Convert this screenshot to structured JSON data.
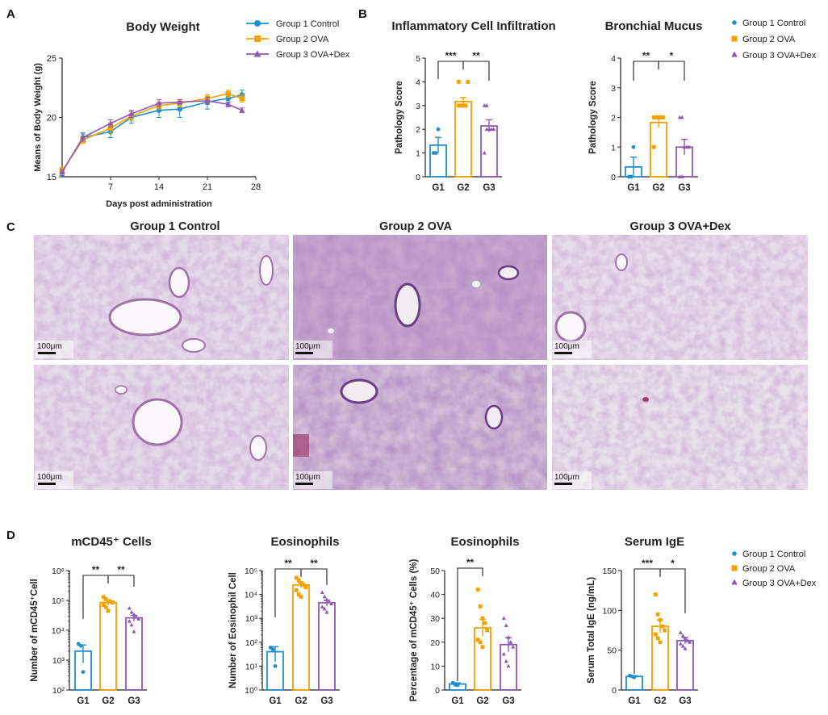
{
  "colors": {
    "g1": "#1f8fd0",
    "g2": "#f5a100",
    "g3": "#8f57b5",
    "axis": "#222222"
  },
  "legend": {
    "groups": [
      "Group 1 Control",
      "Group 2 OVA",
      "Group 3 OVA+Dex"
    ]
  },
  "panel_letters": [
    "A",
    "B",
    "C",
    "D"
  ],
  "groups_short": [
    "G1",
    "G2",
    "G3"
  ],
  "chart_data": [
    {
      "id": "bodyweight",
      "type": "line",
      "title": "Body Weight",
      "xlabel": "Days post administration",
      "ylabel": "Means of Body Weight (g)",
      "xlim": [
        0,
        28
      ],
      "ylim": [
        15,
        25
      ],
      "xticks": [
        7,
        14,
        21,
        28
      ],
      "yticks": [
        15,
        20,
        25
      ],
      "x": [
        0,
        3,
        7,
        10,
        14,
        17,
        21,
        24,
        26
      ],
      "series": [
        {
          "name": "Group 1 Control",
          "values": [
            15.4,
            18.3,
            18.8,
            20.0,
            20.6,
            20.7,
            21.3,
            21.6,
            21.9
          ],
          "err": [
            0.3,
            0.4,
            0.5,
            0.5,
            0.6,
            0.7,
            0.6,
            0.4,
            0.4
          ]
        },
        {
          "name": "Group 2 OVA",
          "values": [
            15.5,
            18.1,
            19.1,
            20.1,
            21.0,
            21.2,
            21.6,
            22.0,
            21.6
          ],
          "err": [
            0.3,
            0.3,
            0.4,
            0.4,
            0.3,
            0.3,
            0.3,
            0.3,
            0.3
          ]
        },
        {
          "name": "Group 3 OVA+Dex",
          "values": [
            15.4,
            18.3,
            19.5,
            20.3,
            21.2,
            21.3,
            21.4,
            21.1,
            20.6
          ],
          "err": [
            0.2,
            0.3,
            0.3,
            0.3,
            0.3,
            0.2,
            0.3,
            0.2,
            0.2
          ]
        }
      ]
    },
    {
      "id": "infiltration",
      "type": "bar",
      "title": "Inflammatory Cell Infiltration",
      "ylabel": "Pathology Score",
      "categories": [
        "G1",
        "G2",
        "G3"
      ],
      "values": [
        1.33,
        3.17,
        2.14
      ],
      "err": [
        0.33,
        0.17,
        0.26
      ],
      "points": [
        [
          1,
          1,
          2
        ],
        [
          3,
          3,
          3,
          3,
          4,
          4
        ],
        [
          1,
          2,
          2,
          2,
          2,
          3,
          3
        ]
      ],
      "ylim": [
        0,
        5
      ],
      "yticks": [
        0,
        1,
        2,
        3,
        4,
        5
      ],
      "sig": [
        {
          "from": 0,
          "to": 1,
          "label": "***"
        },
        {
          "from": 1,
          "to": 2,
          "label": "**"
        }
      ]
    },
    {
      "id": "mucus",
      "type": "bar",
      "title": "Bronchial Mucus",
      "ylabel": "Pathology Score",
      "categories": [
        "G1",
        "G2",
        "G3"
      ],
      "values": [
        0.33,
        1.83,
        1.0
      ],
      "err": [
        0.33,
        0.17,
        0.26
      ],
      "points": [
        [
          0,
          0,
          1
        ],
        [
          1,
          2,
          2,
          2,
          2,
          2
        ],
        [
          0,
          0,
          1,
          1,
          1,
          2,
          2
        ]
      ],
      "ylim": [
        0,
        4
      ],
      "yticks": [
        0,
        1,
        2,
        3,
        4
      ],
      "sig": [
        {
          "from": 0,
          "to": 1,
          "label": "**"
        },
        {
          "from": 1,
          "to": 2,
          "label": "*"
        }
      ]
    },
    {
      "id": "cd45",
      "type": "bar",
      "scale": "log",
      "title": "mCD45⁺ Cells",
      "ylabel": "Number of mCD45⁺Cell",
      "categories": [
        "G1",
        "G2",
        "G3"
      ],
      "values": [
        2000,
        85000,
        26000
      ],
      "err": [
        1200,
        15000,
        6000
      ],
      "points": [
        [
          3500,
          3000,
          400
        ],
        [
          130000,
          110000,
          95000,
          90000,
          85000,
          70000,
          60000,
          45000
        ],
        [
          55000,
          40000,
          33000,
          28000,
          24000,
          20000,
          15000,
          9000
        ]
      ],
      "ylim": [
        100,
        1000000
      ],
      "yticks": [
        {
          "v": 100,
          "label": "10²"
        },
        {
          "v": 1000,
          "label": "10³"
        },
        {
          "v": 10000,
          "label": "10⁴"
        },
        {
          "v": 100000,
          "label": "10⁵"
        },
        {
          "v": 1000000,
          "label": "10⁶"
        }
      ],
      "sig": [
        {
          "from": 0,
          "to": 1,
          "label": "**"
        },
        {
          "from": 1,
          "to": 2,
          "label": "**"
        }
      ]
    },
    {
      "id": "eos_count",
      "type": "bar",
      "scale": "log",
      "title": "Eosinophils",
      "ylabel": "Number of Eosinophil Cell",
      "categories": [
        "G1",
        "G2",
        "G3"
      ],
      "values": [
        40,
        25000,
        4500
      ],
      "err": [
        25,
        6000,
        1200
      ],
      "points": [
        [
          60,
          50,
          10
        ],
        [
          50000,
          40000,
          30000,
          25000,
          20000,
          15000,
          10000,
          8000
        ],
        [
          12000,
          8000,
          6000,
          5000,
          4000,
          3000,
          2500,
          1800
        ]
      ],
      "ylim": [
        1,
        100000
      ],
      "yticks": [
        {
          "v": 1,
          "label": "10⁰"
        },
        {
          "v": 10,
          "label": "10¹"
        },
        {
          "v": 100,
          "label": "10²"
        },
        {
          "v": 1000,
          "label": "10³"
        },
        {
          "v": 10000,
          "label": "10⁴"
        },
        {
          "v": 100000,
          "label": "10⁵"
        }
      ],
      "sig": [
        {
          "from": 0,
          "to": 1,
          "label": "**"
        },
        {
          "from": 1,
          "to": 2,
          "label": "**"
        }
      ]
    },
    {
      "id": "eos_pct",
      "type": "bar",
      "title": "Eosinophils",
      "ylabel": "Percentage of mCD45⁺ Cells (%)",
      "categories": [
        "G1",
        "G2",
        "G3"
      ],
      "values": [
        2.5,
        26,
        19
      ],
      "err": [
        0.5,
        3.5,
        3.0
      ],
      "points": [
        [
          3,
          2.2,
          2
        ],
        [
          42,
          35,
          30,
          28,
          25,
          21,
          20,
          18
        ],
        [
          30,
          27,
          22,
          20,
          18,
          15,
          12,
          10
        ]
      ],
      "ylim": [
        0,
        50
      ],
      "yticks": [
        0,
        10,
        20,
        30,
        40,
        50
      ],
      "sig": [
        {
          "from": 0,
          "to": 1,
          "label": "**"
        }
      ]
    },
    {
      "id": "ige",
      "type": "bar",
      "title": "Serum IgE",
      "ylabel": "Serum Total IgE (ng/mL)",
      "categories": [
        "G1",
        "G2",
        "G3"
      ],
      "values": [
        17,
        80,
        62
      ],
      "err": [
        1,
        8,
        4
      ],
      "points": [
        [
          18,
          17,
          16
        ],
        [
          120,
          95,
          88,
          80,
          75,
          70,
          65,
          60
        ],
        [
          72,
          68,
          65,
          62,
          60,
          58,
          55,
          52
        ]
      ],
      "ylim": [
        0,
        150
      ],
      "yticks": [
        0,
        50,
        100,
        150
      ],
      "sig": [
        {
          "from": 0,
          "to": 1,
          "label": "***"
        },
        {
          "from": 1,
          "to": 2,
          "label": "*"
        }
      ]
    }
  ],
  "histology": {
    "columns": [
      "Group 1 Control",
      "Group 2 OVA",
      "Group 3 OVA+Dex"
    ],
    "scale_label": "100μm"
  }
}
